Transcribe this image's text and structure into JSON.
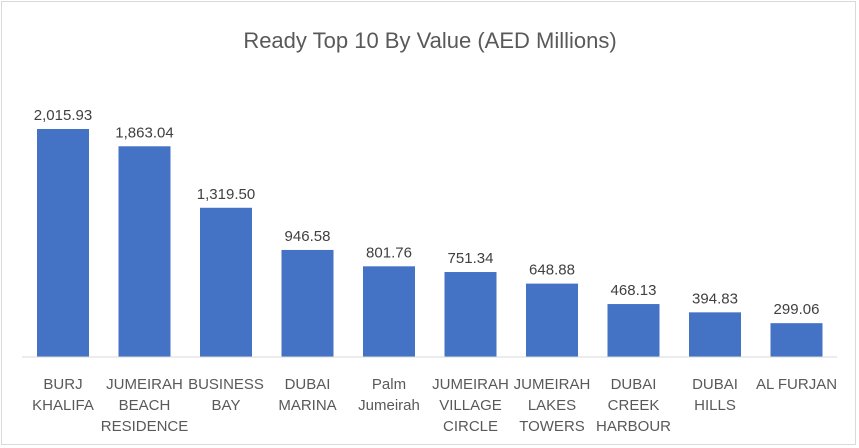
{
  "chart_data": {
    "type": "bar",
    "title": "Ready Top 10 By Value (AED Millions)",
    "categories": [
      [
        "BURJ",
        "KHALIFA"
      ],
      [
        "JUMEIRAH",
        "BEACH",
        "RESIDENCE"
      ],
      [
        "BUSINESS",
        "BAY"
      ],
      [
        "DUBAI",
        "MARINA"
      ],
      [
        "Palm",
        "Jumeirah"
      ],
      [
        "JUMEIRAH",
        "VILLAGE",
        "CIRCLE"
      ],
      [
        "JUMEIRAH",
        "LAKES",
        "TOWERS"
      ],
      [
        "DUBAI",
        "CREEK",
        "HARBOUR"
      ],
      [
        "DUBAI",
        "HILLS"
      ],
      [
        "AL FURJAN"
      ]
    ],
    "values": [
      2015.93,
      1863.04,
      1319.5,
      946.58,
      801.76,
      751.34,
      648.88,
      468.13,
      394.83,
      299.06
    ],
    "value_labels": [
      "2,015.93",
      "1,863.04",
      "1,319.50",
      "946.58",
      "801.76",
      "751.34",
      "648.88",
      "468.13",
      "394.83",
      "299.06"
    ],
    "xlabel": "",
    "ylabel": "",
    "ylim": [
      0,
      2015.93
    ],
    "grid": false,
    "legend": "none",
    "bar_color": "#4472c4"
  }
}
